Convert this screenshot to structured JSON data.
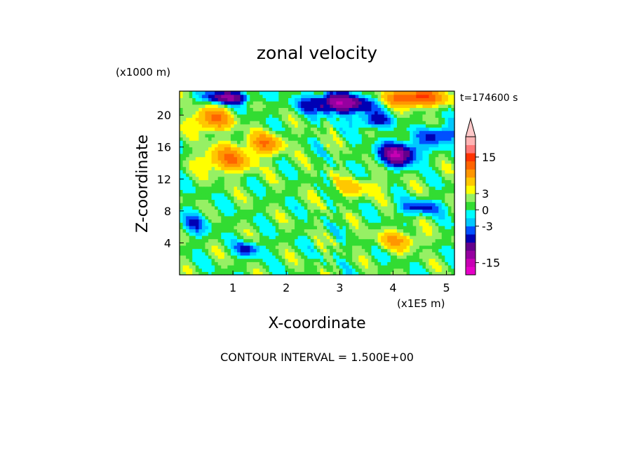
{
  "chart_data": {
    "type": "heatmap",
    "title": "zonal velocity",
    "xlabel": "X-coordinate",
    "ylabel": "Z-coordinate",
    "x_unit": "(x1E5 m)",
    "y_unit": "(x1000 m)",
    "time_label": "t=174600 s",
    "note": "CONTOUR INTERVAL = 1.500E+00",
    "xlim": [
      0,
      5.15
    ],
    "ylim": [
      0,
      23
    ],
    "x_ticks": [
      1,
      2,
      3,
      4,
      5
    ],
    "y_ticks": [
      4,
      8,
      12,
      16,
      20
    ],
    "colorbar": {
      "tick_labels": [
        "15",
        "3",
        "0",
        "-3",
        "-15"
      ],
      "tick_values": [
        15,
        3,
        0,
        -3,
        -15
      ],
      "levels": [
        -19.5,
        -16.5,
        -13.5,
        -10.5,
        -7.5,
        -4.5,
        -3,
        -1.5,
        0,
        1.5,
        3,
        4.5,
        7.5,
        10.5,
        13.5,
        16.5,
        19.5
      ],
      "colors": [
        "#e600c8",
        "#c800b4",
        "#9600a0",
        "#64008c",
        "#0000b4",
        "#0050ff",
        "#00c8ff",
        "#00ffff",
        "#32dc32",
        "#96f064",
        "#ffff00",
        "#ffc800",
        "#ff9600",
        "#ff6400",
        "#ff3200",
        "#ff7878",
        "#ffb4b4"
      ],
      "extend_top": true,
      "top_color": "#ffc8c8"
    },
    "contour_interval": 1.5
  }
}
